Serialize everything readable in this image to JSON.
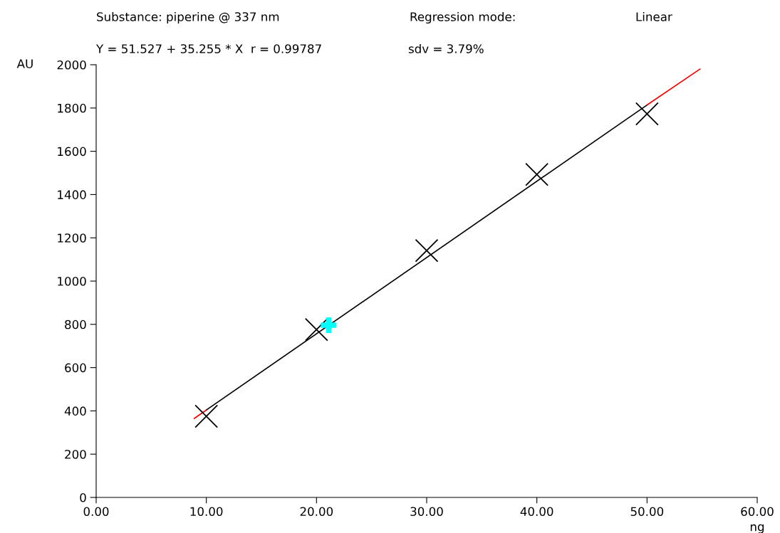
{
  "chart_data": {
    "type": "scatter",
    "title": "Substance: piperine @ 337 nm",
    "subtitle": "Y = 51.527 + 35.255 * X  r = 0.99787",
    "annotations": [
      "Regression mode:",
      "Linear",
      "sdv = 3.79%"
    ],
    "xlabel": "ng",
    "ylabel": "AU",
    "series": [
      {
        "type": "line",
        "color": "#000000",
        "x": [
          10,
          50
        ],
        "values": [
          404,
          1814
        ]
      },
      {
        "type": "line",
        "color": "#ff0000",
        "x": [
          8.9,
          10
        ],
        "values": [
          365,
          404
        ]
      },
      {
        "type": "line",
        "color": "#ff0000",
        "x": [
          50,
          54.8
        ],
        "values": [
          1814,
          1980
        ]
      },
      {
        "color": "#000000",
        "marker": "cross",
        "x": [
          10,
          20,
          30,
          40,
          50
        ],
        "values": [
          375,
          776,
          1141,
          1493,
          1773
        ]
      },
      {
        "color": "#00ffff",
        "marker": "plus",
        "x": [
          21.1
        ],
        "values": [
          796
        ]
      }
    ],
    "xlim": [
      0,
      60
    ],
    "ylim": [
      0,
      2000
    ],
    "xticks": [
      {
        "value": 0,
        "label": "0.00"
      },
      {
        "value": 10,
        "label": "10.00"
      },
      {
        "value": 20,
        "label": "20.00"
      },
      {
        "value": 30,
        "label": "30.00"
      },
      {
        "value": 40,
        "label": "40.00"
      },
      {
        "value": 50,
        "label": "50.00"
      },
      {
        "value": 60,
        "label": "60.00"
      }
    ],
    "yticks": [
      0,
      200,
      400,
      600,
      800,
      1000,
      1200,
      1400,
      1600,
      1800,
      2000
    ],
    "grid": false,
    "legend": false
  }
}
